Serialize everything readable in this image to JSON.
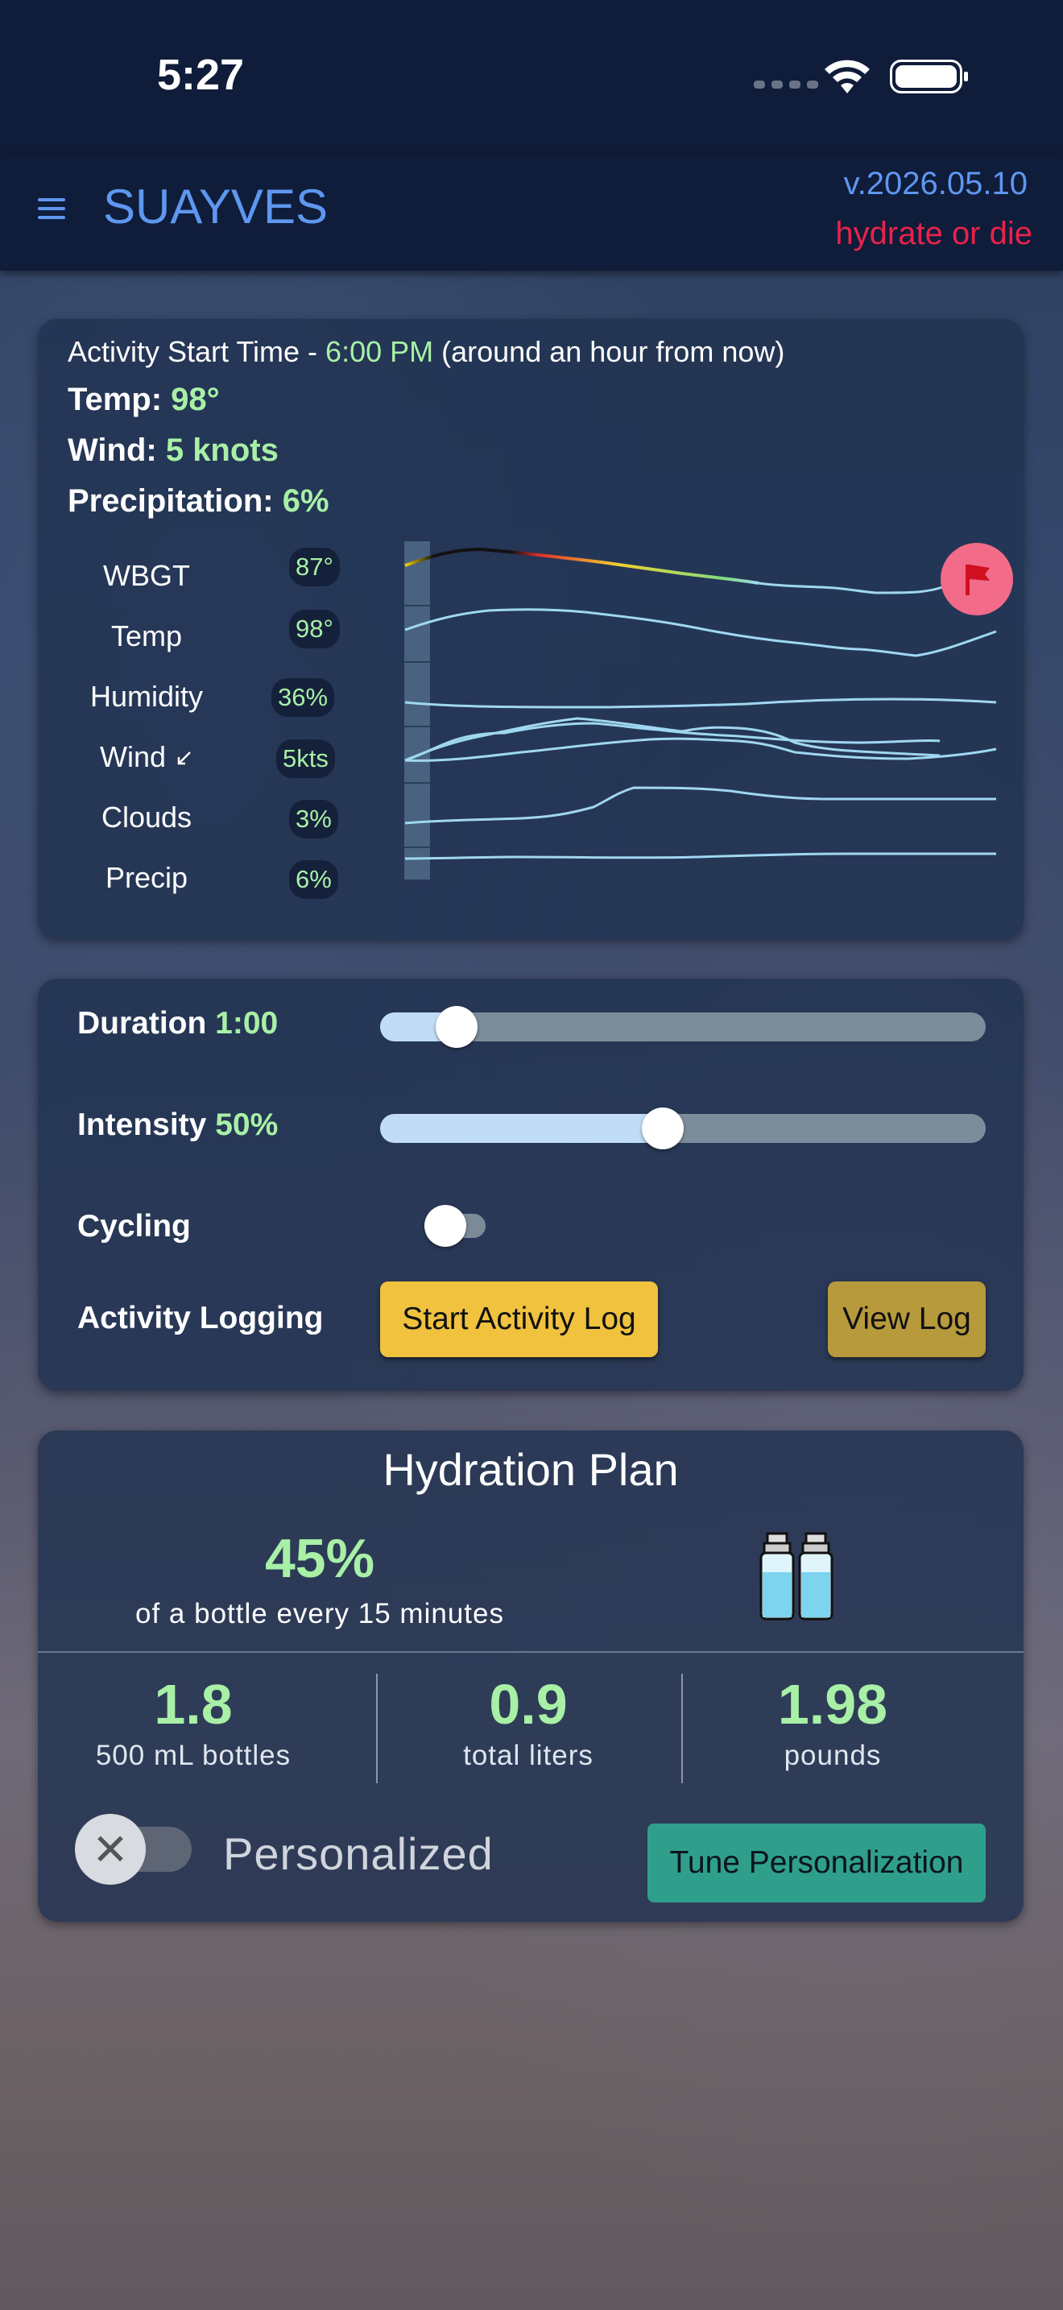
{
  "status_bar": {
    "time": "5:27"
  },
  "app_bar": {
    "title": "SUAYVES",
    "version": "v.2026.05.10",
    "tagline": "hydrate or die"
  },
  "weather": {
    "start_prefix": "Activity Start Time - ",
    "start_time": "6:00 PM",
    "start_suffix": " (around an hour from now)",
    "temp_label": "Temp: ",
    "temp_value": "98°",
    "wind_label": "Wind: ",
    "wind_value": "5 knots",
    "precip_label": "Precipitation: ",
    "precip_value": "6%",
    "rows": [
      {
        "label": "WBGT",
        "value": "87°"
      },
      {
        "label": "Temp",
        "value": "98°"
      },
      {
        "label": "Humidity",
        "value": "36%"
      },
      {
        "label": "Wind",
        "value": "5kts"
      },
      {
        "label": "Clouds",
        "value": "3%"
      },
      {
        "label": "Precip",
        "value": "6%"
      }
    ]
  },
  "controls": {
    "duration_label": "Duration ",
    "duration_value": "1:00",
    "duration_fraction": 0.1,
    "intensity_label": "Intensity ",
    "intensity_value": "50%",
    "intensity_fraction": 0.44,
    "cycling_label": "Cycling",
    "cycling_on": false,
    "logging_label": "Activity Logging",
    "start_log_button": "Start Activity Log",
    "view_log_button": "View Log"
  },
  "hydration": {
    "title": "Hydration Plan",
    "percent": "45%",
    "subtitle": "of a bottle every 15 minutes",
    "stats": [
      {
        "value": "1.8",
        "label": "500 mL bottles"
      },
      {
        "value": "0.9",
        "label": "total liters"
      },
      {
        "value": "1.98",
        "label": "pounds"
      }
    ],
    "personalized_label": "Personalized",
    "personalized_on": false,
    "tune_button": "Tune Personalization"
  },
  "colors": {
    "accent": "#5e97ef",
    "tagline": "#e8234a",
    "value_green": "#a8f0a6",
    "button_yellow": "#f0c23e",
    "button_teal": "#2f9f8c"
  }
}
